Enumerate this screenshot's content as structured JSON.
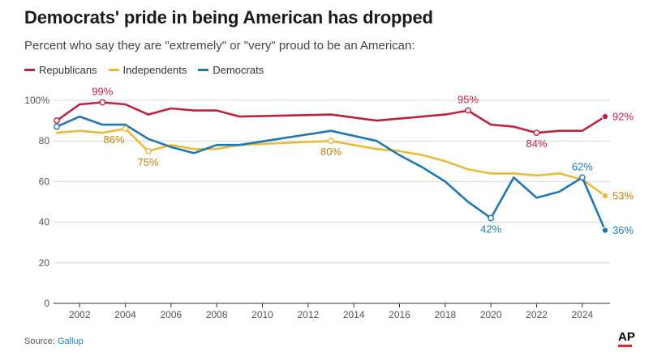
{
  "title": "Democrats' pride in being American has dropped",
  "subtitle": "Percent who say they are \"extremely\" or \"very\" proud to be an American:",
  "source_label": "Source:",
  "source_name": "Gallup",
  "logo_text": "AP",
  "colors": {
    "republicans": "#c0213f",
    "independents": "#e8bb3a",
    "democrats": "#1f78b4",
    "grid": "#d9d9d9",
    "axis": "#333333",
    "tick": "#555555",
    "logo_bar": "#e0282e"
  },
  "chart_data": {
    "type": "line",
    "title": "Democrats' pride in being American has dropped",
    "subtitle": "Percent who say they are \"extremely\" or \"very\" proud to be an American:",
    "xlabel": "",
    "ylabel": "",
    "xlim": [
      2001,
      2025
    ],
    "ylim": [
      0,
      100
    ],
    "xticks": [
      2002,
      2004,
      2006,
      2008,
      2010,
      2012,
      2014,
      2016,
      2018,
      2020,
      2022,
      2024
    ],
    "yticks": [
      0,
      20,
      40,
      60,
      80,
      100
    ],
    "ytick_labels": [
      "0",
      "20",
      "40",
      "60",
      "80",
      "100%"
    ],
    "grid": true,
    "legend_position": "top-left",
    "series": [
      {
        "name": "Republicans",
        "color": "#c0213f",
        "x": [
          2001,
          2002,
          2003,
          2004,
          2005,
          2006,
          2007,
          2008,
          2009,
          2013,
          2015,
          2016,
          2017,
          2018,
          2019,
          2020,
          2021,
          2022,
          2023,
          2024,
          2025
        ],
        "y": [
          90,
          98,
          99,
          98,
          93,
          96,
          95,
          95,
          92,
          93,
          90,
          91,
          92,
          93,
          95,
          88,
          87,
          84,
          85,
          85,
          92
        ],
        "markers": [
          2001,
          2003,
          2019,
          2022,
          2025
        ]
      },
      {
        "name": "Independents",
        "color": "#e8bb3a",
        "x": [
          2001,
          2002,
          2003,
          2004,
          2005,
          2006,
          2007,
          2008,
          2009,
          2013,
          2015,
          2016,
          2017,
          2018,
          2019,
          2020,
          2021,
          2022,
          2023,
          2024,
          2025
        ],
        "y": [
          84,
          85,
          84,
          86,
          75,
          78,
          76,
          76,
          78,
          80,
          76,
          75,
          73,
          70,
          66,
          64,
          64,
          63,
          64,
          61,
          53
        ],
        "markers": [
          2004,
          2005,
          2013,
          2025
        ]
      },
      {
        "name": "Democrats",
        "color": "#1f78b4",
        "x": [
          2001,
          2002,
          2003,
          2004,
          2005,
          2006,
          2007,
          2008,
          2009,
          2013,
          2015,
          2016,
          2017,
          2018,
          2019,
          2020,
          2021,
          2022,
          2023,
          2024,
          2025
        ],
        "y": [
          87,
          92,
          88,
          88,
          81,
          77,
          74,
          78,
          78,
          85,
          80,
          73,
          67,
          60,
          50,
          42,
          62,
          52,
          55,
          62,
          36
        ],
        "markers": [
          2001,
          2020,
          2024,
          2025
        ]
      }
    ],
    "annotations": [
      {
        "series": "Republicans",
        "x": 2003,
        "y": 99,
        "text": "99%",
        "placement": "above"
      },
      {
        "series": "Republicans",
        "x": 2019,
        "y": 95,
        "text": "95%",
        "placement": "above"
      },
      {
        "series": "Republicans",
        "x": 2022,
        "y": 84,
        "text": "84%",
        "placement": "below"
      },
      {
        "series": "Republicans",
        "x": 2025,
        "y": 92,
        "text": "92%",
        "placement": "right"
      },
      {
        "series": "Independents",
        "x": 2004,
        "y": 86,
        "text": "86%",
        "placement": "below-left"
      },
      {
        "series": "Independents",
        "x": 2005,
        "y": 75,
        "text": "75%",
        "placement": "below"
      },
      {
        "series": "Independents",
        "x": 2013,
        "y": 80,
        "text": "80%",
        "placement": "below"
      },
      {
        "series": "Independents",
        "x": 2025,
        "y": 53,
        "text": "53%",
        "placement": "right"
      },
      {
        "series": "Democrats",
        "x": 2020,
        "y": 42,
        "text": "42%",
        "placement": "below"
      },
      {
        "series": "Democrats",
        "x": 2024,
        "y": 62,
        "text": "62%",
        "placement": "above"
      },
      {
        "series": "Democrats",
        "x": 2025,
        "y": 36,
        "text": "36%",
        "placement": "right"
      }
    ]
  }
}
